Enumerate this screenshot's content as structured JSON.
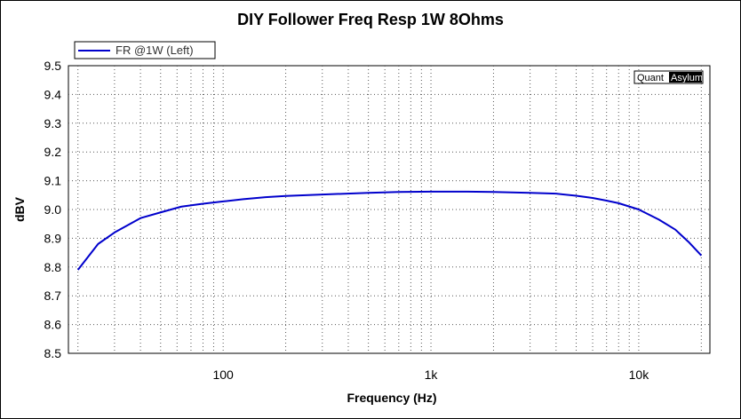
{
  "chart_data": {
    "type": "line",
    "title": "DIY Follower Freq Resp 1W 8Ohms",
    "xlabel": "Frequency (Hz)",
    "ylabel": "dBV",
    "x_scale": "log",
    "xlim": [
      18,
      22000
    ],
    "ylim": [
      8.5,
      9.5
    ],
    "x_tick_values": [
      100,
      1000,
      10000
    ],
    "x_tick_labels": [
      "100",
      "1k",
      "10k"
    ],
    "y_ticks": [
      "8.5",
      "8.6",
      "8.7",
      "8.8",
      "8.9",
      "9.0",
      "9.1",
      "9.2",
      "9.3",
      "9.4",
      "9.5"
    ],
    "grid": true,
    "legend_position": "top-left",
    "series": [
      {
        "name": "FR @1W (Left)",
        "color": "#0000cc",
        "x": [
          20,
          25,
          30,
          40,
          50,
          63,
          80,
          100,
          125,
          160,
          200,
          300,
          500,
          700,
          1000,
          1500,
          2000,
          3000,
          4000,
          5000,
          6000,
          7000,
          8000,
          10000,
          12500,
          15000,
          17500,
          20000
        ],
        "y": [
          8.79,
          8.88,
          8.92,
          8.97,
          8.99,
          9.01,
          9.02,
          9.028,
          9.036,
          9.043,
          9.047,
          9.052,
          9.058,
          9.061,
          9.062,
          9.062,
          9.061,
          9.058,
          9.055,
          9.048,
          9.04,
          9.031,
          9.022,
          9.0,
          8.965,
          8.93,
          8.885,
          8.84
        ]
      }
    ],
    "watermark": {
      "part1": "Quant",
      "part2": "Asylum"
    }
  }
}
